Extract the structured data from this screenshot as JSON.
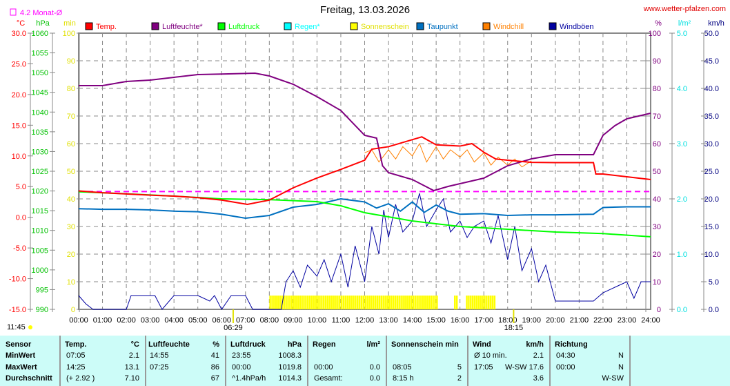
{
  "title": "Freitag, 13.03.2026",
  "site": "www.wetter-pfalzen.com",
  "month_avg_label": "4.2 Monat-Ø",
  "legend": [
    {
      "label": "Temp.",
      "color": "#ff0000"
    },
    {
      "label": "Luftfeuchte*",
      "color": "#800080"
    },
    {
      "label": "Luftdruck",
      "color": "#00ff00"
    },
    {
      "label": "Regen*",
      "color": "#00ffff"
    },
    {
      "label": "Sonnenschein",
      "color": "#ffff00"
    },
    {
      "label": "Taupunkt",
      "color": "#0070c0"
    },
    {
      "label": "Windchill",
      "color": "#ff8000"
    },
    {
      "label": "Windböen",
      "color": "#0000a0"
    }
  ],
  "chart_data": {
    "type": "line",
    "xlabel": "time",
    "x_ticks": [
      "00:00",
      "01:00",
      "02:00",
      "03:00",
      "04:00",
      "05:00",
      "06:00",
      "07:00",
      "08:00",
      "09:00",
      "10:00",
      "11:00",
      "12:00",
      "13:00",
      "14:00",
      "15:00",
      "16:00",
      "17:00",
      "18:00",
      "19:00",
      "20:00",
      "21:00",
      "22:00",
      "23:00",
      "24:00"
    ],
    "axes": {
      "temp": {
        "unit": "°C",
        "range": [
          -15,
          30
        ],
        "step": 5,
        "color": "#ff0000"
      },
      "pressure": {
        "unit": "hPa",
        "range": [
          990,
          1060
        ],
        "step": 5,
        "color": "#00c000"
      },
      "sun": {
        "unit": "min",
        "range": [
          0,
          100
        ],
        "step": 10,
        "color": "#e0e000"
      },
      "humidity": {
        "unit": "%",
        "range": [
          0,
          100
        ],
        "step": 10,
        "color": "#800080"
      },
      "rain": {
        "unit": "l/m²",
        "range": [
          0,
          5
        ],
        "step": 1,
        "color": "#00e0e0"
      },
      "wind": {
        "unit": "km/h",
        "range": [
          0,
          50
        ],
        "step": 5,
        "color": "#000080"
      }
    },
    "month_avg_temp": 4.2,
    "sunrise": "06:29",
    "sunset": "18:15",
    "moon": "11:45",
    "series": [
      {
        "name": "Temp.",
        "axis": "temp",
        "color": "#ff0000",
        "x": [
          0,
          1,
          2,
          3,
          4,
          5,
          6,
          7.08,
          8,
          9,
          10,
          11,
          12,
          12.3,
          13,
          14.4,
          15,
          16,
          16.5,
          17,
          17.5,
          18,
          19,
          20,
          21.6,
          21.7,
          22,
          23,
          24
        ],
        "y": [
          4.3,
          4.0,
          3.8,
          3.6,
          3.45,
          3.2,
          2.8,
          2.1,
          2.8,
          4.8,
          6.4,
          7.8,
          9.3,
          11.1,
          11.5,
          13.1,
          11.8,
          11.6,
          12.0,
          10.6,
          9.5,
          9.3,
          8.95,
          8.9,
          8.9,
          7.05,
          7.05,
          6.6,
          6.15
        ]
      },
      {
        "name": "Luftfeuchte*",
        "axis": "humidity",
        "color": "#800080",
        "x": [
          0,
          1,
          2,
          3,
          4,
          5,
          6,
          7.4,
          8,
          9,
          10,
          11,
          12,
          12.5,
          12.75,
          13,
          14,
          14.9,
          15.5,
          16,
          17,
          18,
          19,
          20,
          21.6,
          22,
          22.5,
          23,
          24
        ],
        "y": [
          81,
          81,
          82.5,
          83,
          84,
          85,
          85.2,
          85.5,
          84.5,
          81.5,
          77,
          72,
          63,
          62,
          52,
          49.5,
          47,
          43,
          44.5,
          45.5,
          47.5,
          52,
          54.5,
          56,
          56,
          63,
          66.5,
          69,
          71
        ]
      },
      {
        "name": "Luftdruck",
        "axis": "pressure",
        "color": "#00ff00",
        "x": [
          0,
          2,
          4,
          6,
          8,
          10,
          11,
          12,
          14,
          16,
          18,
          20,
          22,
          24
        ],
        "y": [
          1019.8,
          1019.3,
          1018.7,
          1018,
          1017.8,
          1017.3,
          1016.25,
          1014.5,
          1012.4,
          1011,
          1010.3,
          1009.6,
          1009.2,
          1008.4
        ]
      },
      {
        "name": "Taupunkt",
        "axis": "temp",
        "color": "#0070c0",
        "x": [
          0,
          1,
          2,
          3,
          4,
          5,
          6,
          7,
          8,
          9,
          10,
          11,
          12,
          12.5,
          13,
          13.5,
          14,
          14.5,
          15,
          15.5,
          16,
          17,
          18,
          19,
          20,
          21.6,
          22,
          23,
          24
        ],
        "y": [
          1.4,
          1.3,
          1.3,
          1.2,
          1.0,
          0.9,
          0.5,
          -0.15,
          0.3,
          1.65,
          2.1,
          3.0,
          2.5,
          1.5,
          2.2,
          1.0,
          2.5,
          0.8,
          2.0,
          1.0,
          0.5,
          0.6,
          0.3,
          0.4,
          0.4,
          0.5,
          1.6,
          1.7,
          1.7
        ]
      },
      {
        "name": "Windchill",
        "axis": "temp",
        "color": "#ff8000",
        "x": [
          12,
          12.3,
          12.6,
          13,
          13.3,
          13.6,
          14,
          14.3,
          14.6,
          15,
          15.3,
          15.6,
          16,
          16.3,
          16.6,
          17,
          17.3,
          17.6,
          18,
          18.3,
          18.6,
          19
        ],
        "y": [
          10.5,
          11,
          9,
          11,
          9.5,
          11.5,
          10,
          12,
          9,
          11.5,
          9.5,
          11,
          9.8,
          11,
          9,
          10.5,
          8.5,
          9.8,
          8.5,
          9.5,
          8.2,
          9.2
        ]
      },
      {
        "name": "Windböen",
        "axis": "wind",
        "color": "#0000a0",
        "x": [
          0,
          0.3,
          0.6,
          1,
          1.1,
          2,
          2.2,
          3,
          3.2,
          3.5,
          4,
          4.2,
          5,
          5.5,
          5.7,
          6,
          6.4,
          7,
          7.3,
          8,
          8.5,
          8.7,
          9,
          9.3,
          9.6,
          10,
          10.3,
          10.6,
          11,
          11.3,
          11.6,
          12,
          12.3,
          12.6,
          12.8,
          13,
          13.3,
          13.6,
          14,
          14.3,
          14.6,
          15,
          15.3,
          15.6,
          16,
          16.3,
          16.6,
          17,
          17.3,
          17.6,
          18,
          18.3,
          18.6,
          19,
          19.3,
          19.6,
          20,
          21,
          21.6,
          22,
          22.5,
          23,
          23.3,
          23.6,
          24
        ],
        "y": [
          2.5,
          1,
          0,
          0,
          0,
          0,
          2.5,
          2.5,
          2.5,
          0,
          2.5,
          2.5,
          2.5,
          1.5,
          2.5,
          0,
          2.5,
          2.5,
          0,
          0,
          0,
          5,
          7,
          4,
          8,
          6,
          9,
          5,
          10,
          4,
          11.5,
          5,
          15,
          10,
          18,
          13,
          19,
          14,
          16,
          21,
          15,
          18,
          20,
          14,
          16,
          13,
          15,
          16,
          12,
          17,
          9,
          15,
          7,
          11,
          5,
          8,
          1.5,
          1.5,
          1.5,
          3,
          4,
          5,
          2,
          5,
          5
        ]
      }
    ],
    "sunshine_intervals": [
      [
        "08:00",
        "15:05"
      ],
      [
        "15:45",
        "15:55"
      ],
      [
        "16:15",
        "17:25"
      ]
    ]
  },
  "table": {
    "sensor": {
      "h": "Sensor",
      "rows": [
        "MinWert",
        "MaxWert",
        "Durchschnitt"
      ]
    },
    "temp": {
      "h": "Temp.",
      "u": "°C",
      "t": [
        "07:05",
        "14:25",
        "(+ 2.92 )"
      ],
      "v": [
        "2.1",
        "13.1",
        "7.10"
      ]
    },
    "hum": {
      "h": "Luftfeuchte",
      "u": "%",
      "t": [
        "14:55",
        "07:25",
        ""
      ],
      "v": [
        "41",
        "86",
        "67"
      ]
    },
    "press": {
      "h": "Luftdruck",
      "u": "hPa",
      "t": [
        "23:55",
        "00:00",
        "^1.4hPa/h"
      ],
      "v": [
        "1008.3",
        "1019.8",
        "1014.3"
      ]
    },
    "rain": {
      "h": "Regen",
      "u": "l/m²",
      "t": [
        "",
        "00:00",
        "Gesamt:"
      ],
      "v": [
        "",
        "0.0",
        "0.0"
      ]
    },
    "sun": {
      "h": "Sonnenschein min",
      "t": [
        "",
        "08:05",
        "8:15 h"
      ],
      "v": [
        "",
        "5",
        "2"
      ]
    },
    "wind": {
      "h": "Wind",
      "u": "km/h",
      "t": [
        "Ø 10 min.",
        "17:05",
        ""
      ],
      "v": [
        "2.1",
        "W-SW 17.6",
        "3.6"
      ]
    },
    "dir": {
      "h": "Richtung",
      "t": [
        "04:30",
        "00:00",
        ""
      ],
      "v": [
        "N",
        "N",
        "W-SW"
      ]
    }
  }
}
